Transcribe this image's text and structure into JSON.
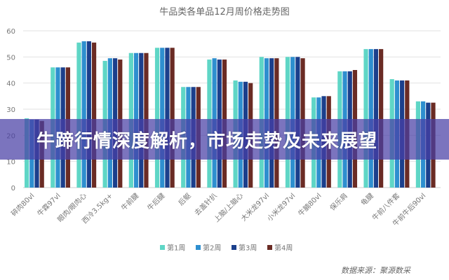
{
  "chart_data": {
    "type": "bar",
    "title": "牛品类各单品12月周价格走势图",
    "categories": [
      "碎肉80vl",
      "牛霖97vl",
      "眼肉/眼肉心",
      "西冷3.5kg+",
      "牛前腱",
      "牛后腱",
      "后躯",
      "去盖针扒",
      "上脑/上脑心",
      "大米龙97vl",
      "小米龙97vl",
      "牛腩80vl",
      "保乐肩",
      "龟腱",
      "牛前八件套",
      "牛前牛后90vl"
    ],
    "series": [
      {
        "name": "第1周",
        "color": "#5fd6c6",
        "values": [
          26.5,
          46,
          55.5,
          48.5,
          51.5,
          53.5,
          38.5,
          49,
          41,
          50,
          50,
          34.5,
          44.5,
          53,
          41.5,
          33
        ]
      },
      {
        "name": "第2周",
        "color": "#2e8fcf",
        "values": [
          26,
          46,
          56,
          49.5,
          51.5,
          53.5,
          38.5,
          49.5,
          40.5,
          49.5,
          50,
          34.5,
          44.5,
          53,
          41,
          33
        ]
      },
      {
        "name": "第3周",
        "color": "#1b3f8c",
        "values": [
          26,
          46,
          56,
          49.5,
          51.5,
          53.5,
          38.5,
          49,
          40.5,
          49.5,
          50,
          35,
          44.5,
          53,
          41,
          32.5
        ]
      },
      {
        "name": "第4周",
        "color": "#6a2b24",
        "values": [
          25.5,
          46,
          55.5,
          49,
          51.5,
          53.5,
          38.5,
          49,
          40,
          49.5,
          49.5,
          35,
          45,
          53,
          41,
          32.5
        ]
      }
    ],
    "yticks": [
      "0",
      "10",
      "20",
      "30",
      "40",
      "50",
      "60"
    ],
    "ylim": [
      0,
      60
    ],
    "grid": true,
    "legend": "bottom",
    "xlabel": "",
    "ylabel": ""
  },
  "banner": {
    "text": "牛蹄行情深度解析，市场走势及未来展望"
  },
  "source": "数据来源：聚源数采"
}
